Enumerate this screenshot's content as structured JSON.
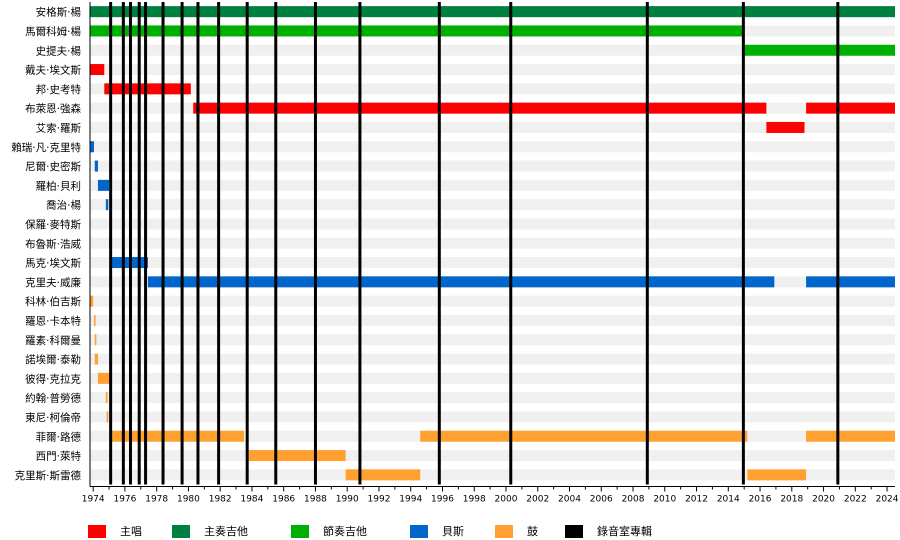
{
  "chart_data": {
    "type": "timeline",
    "title": "",
    "xlabel": "",
    "ylabel": "",
    "xlim": [
      1973.8,
      2024.5
    ],
    "x_ticks": [
      1974,
      1976,
      1978,
      1980,
      1982,
      1984,
      1986,
      1988,
      1990,
      1992,
      1994,
      1996,
      1998,
      2000,
      2002,
      2004,
      2006,
      2008,
      2010,
      2012,
      2014,
      2016,
      2018,
      2020,
      2022,
      2024
    ],
    "roles": {
      "vocals": {
        "label": "主唱",
        "color": "#ff0000"
      },
      "lead_guitar": {
        "label": "主奏吉他",
        "color": "#008040"
      },
      "rhythm_guitar": {
        "label": "節奏吉他",
        "color": "#00b000"
      },
      "bass": {
        "label": "貝斯",
        "color": "#0066cc"
      },
      "drums": {
        "label": "鼓",
        "color": "#ffa030"
      },
      "albums": {
        "label": "錄音室專輯",
        "color": "#000000"
      }
    },
    "members": [
      {
        "name": "安格斯·楊",
        "periods": [
          {
            "role": "lead_guitar",
            "start": 1973.8,
            "end": 2024.5
          }
        ]
      },
      {
        "name": "馬爾科姆·楊",
        "periods": [
          {
            "role": "rhythm_guitar",
            "start": 1973.8,
            "end": 2014.9
          }
        ]
      },
      {
        "name": "史提夫·楊",
        "periods": [
          {
            "role": "rhythm_guitar",
            "start": 2014.9,
            "end": 2024.5
          }
        ]
      },
      {
        "name": "戴夫·埃文斯",
        "periods": [
          {
            "role": "vocals",
            "start": 1973.8,
            "end": 1974.7
          }
        ]
      },
      {
        "name": "邦·史考特",
        "periods": [
          {
            "role": "vocals",
            "start": 1974.7,
            "end": 1980.15
          }
        ]
      },
      {
        "name": "布萊恩·強森",
        "periods": [
          {
            "role": "vocals",
            "start": 1980.3,
            "end": 2016.4
          },
          {
            "role": "vocals",
            "start": 2018.9,
            "end": 2024.5
          }
        ]
      },
      {
        "name": "艾索·羅斯",
        "periods": [
          {
            "role": "vocals",
            "start": 2016.4,
            "end": 2018.8
          }
        ]
      },
      {
        "name": "賴瑞·凡·克里特",
        "periods": [
          {
            "role": "bass",
            "start": 1973.8,
            "end": 1974.05
          }
        ]
      },
      {
        "name": "尼爾·史密斯",
        "periods": [
          {
            "role": "bass",
            "start": 1974.1,
            "end": 1974.3
          }
        ]
      },
      {
        "name": "羅柏·貝利",
        "periods": [
          {
            "role": "bass",
            "start": 1974.3,
            "end": 1975.0
          }
        ]
      },
      {
        "name": "喬治·楊",
        "periods": [
          {
            "role": "bass",
            "start": 1974.8,
            "end": 1974.95
          }
        ]
      },
      {
        "name": "保羅·麥特斯",
        "periods": []
      },
      {
        "name": "布魯斯·浩威",
        "periods": [
          {
            "role": "bass",
            "start": 1975.0,
            "end": 1975.1
          }
        ]
      },
      {
        "name": "馬克·埃文斯",
        "periods": [
          {
            "role": "bass",
            "start": 1975.1,
            "end": 1977.45
          }
        ]
      },
      {
        "name": "克里夫·威廉",
        "periods": [
          {
            "role": "bass",
            "start": 1977.45,
            "end": 2016.9
          },
          {
            "role": "bass",
            "start": 2018.9,
            "end": 2024.5
          }
        ]
      },
      {
        "name": "科林·伯吉斯",
        "periods": [
          {
            "role": "drums",
            "start": 1973.8,
            "end": 1974.0
          }
        ]
      },
      {
        "name": "羅恩·卡本特",
        "periods": [
          {
            "role": "drums",
            "start": 1974.05,
            "end": 1974.15
          }
        ]
      },
      {
        "name": "羅素·科爾曼",
        "periods": [
          {
            "role": "drums",
            "start": 1974.1,
            "end": 1974.2
          }
        ]
      },
      {
        "name": "諾埃爾·泰勒",
        "periods": [
          {
            "role": "drums",
            "start": 1974.1,
            "end": 1974.3
          }
        ]
      },
      {
        "name": "彼得·克拉克",
        "periods": [
          {
            "role": "drums",
            "start": 1974.3,
            "end": 1975.05
          }
        ]
      },
      {
        "name": "約翰·普勞德",
        "periods": [
          {
            "role": "drums",
            "start": 1974.8,
            "end": 1974.9
          }
        ]
      },
      {
        "name": "東尼·柯倫帝",
        "periods": [
          {
            "role": "drums",
            "start": 1974.85,
            "end": 1974.95
          }
        ]
      },
      {
        "name": "菲爾·路德",
        "periods": [
          {
            "role": "drums",
            "start": 1975.1,
            "end": 1983.5
          },
          {
            "role": "drums",
            "start": 1994.6,
            "end": 2015.2
          },
          {
            "role": "drums",
            "start": 2018.9,
            "end": 2024.5
          }
        ]
      },
      {
        "name": "西門·萊特",
        "periods": [
          {
            "role": "drums",
            "start": 1983.8,
            "end": 1989.9
          }
        ]
      },
      {
        "name": "克里斯·斯雷德",
        "periods": [
          {
            "role": "drums",
            "start": 1989.9,
            "end": 1994.6
          },
          {
            "role": "drums",
            "start": 2015.2,
            "end": 2018.9
          }
        ]
      }
    ],
    "albums": [
      1975.1,
      1975.9,
      1976.35,
      1976.9,
      1977.3,
      1978.4,
      1979.6,
      1980.6,
      1981.9,
      1983.7,
      1985.5,
      1988.0,
      1990.8,
      1995.8,
      2000.3,
      2008.9,
      2014.95,
      2020.9
    ],
    "grid": true,
    "legend_position": "bottom"
  }
}
